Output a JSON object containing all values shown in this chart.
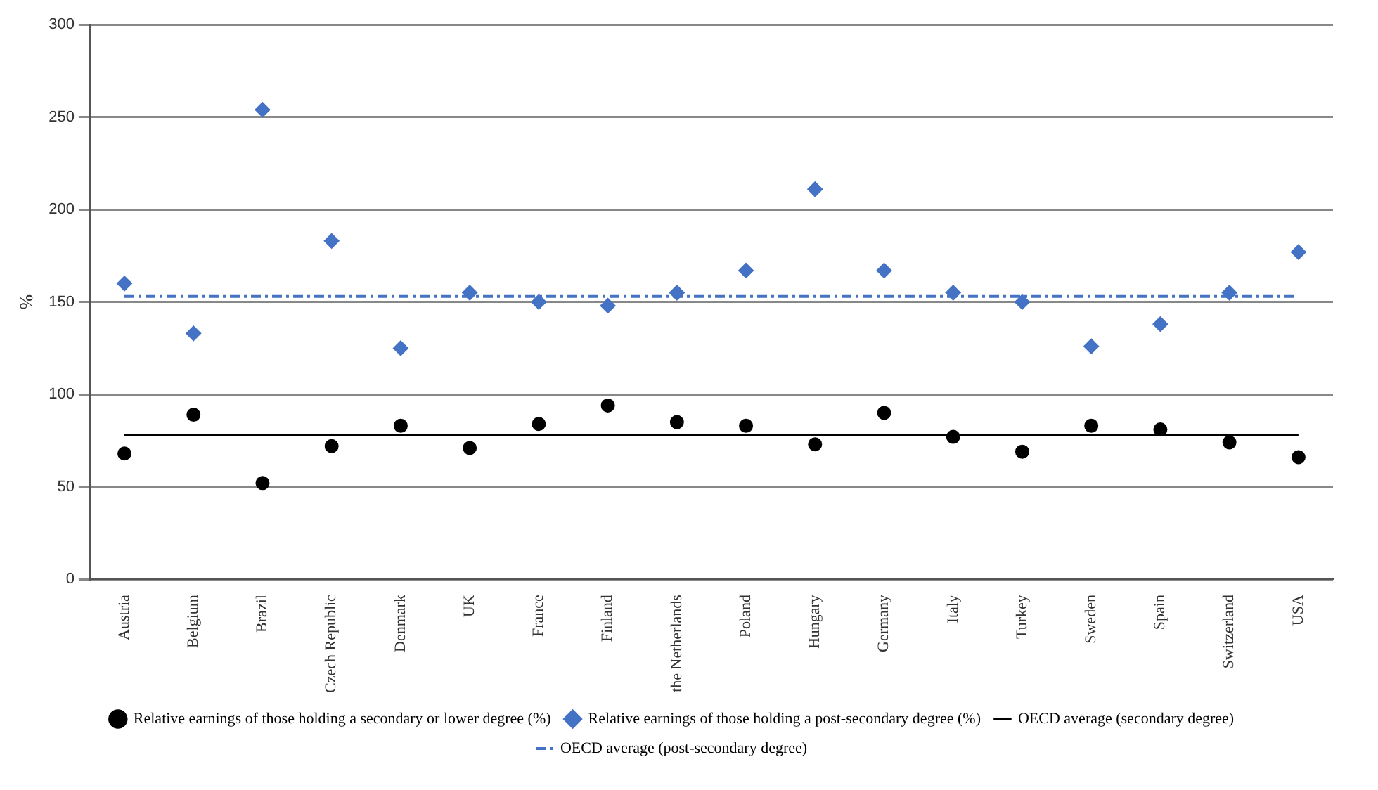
{
  "chart_data": {
    "type": "scatter",
    "ylabel": "%",
    "categories": [
      "Austria",
      "Belgium",
      "Brazil",
      "Czech Republic",
      "Denmark",
      "UK",
      "France",
      "Finland",
      "the Netherlands",
      "Poland",
      "Hungary",
      "Germany",
      "Italy",
      "Turkey",
      "Sweden",
      "Spain",
      "Switzerland",
      "USA"
    ],
    "series": [
      {
        "name": "Relative earnings of those holding a secondary or lower degree (%)",
        "marker": "circle",
        "color": "#000000",
        "values": [
          68,
          89,
          52,
          72,
          83,
          71,
          84,
          94,
          85,
          83,
          73,
          90,
          77,
          69,
          83,
          81,
          74,
          66
        ]
      },
      {
        "name": "Relative earnings of those holding a post-secondary degree (%)",
        "marker": "diamond",
        "color": "#4472c4",
        "values": [
          160,
          133,
          254,
          183,
          125,
          155,
          150,
          148,
          155,
          167,
          211,
          167,
          155,
          150,
          126,
          138,
          155,
          177
        ]
      },
      {
        "name": "OECD average (secondary degree)",
        "type": "line",
        "marker": "none",
        "line_style": "solid",
        "color": "#000000",
        "values": [
          78,
          78,
          78,
          78,
          78,
          78,
          78,
          78,
          78,
          78,
          78,
          78,
          78,
          78,
          78,
          78,
          78,
          78
        ]
      },
      {
        "name": "OECD average (post-secondary degree)",
        "type": "line",
        "marker": "none",
        "line_style": "dashed",
        "color": "#4472c4",
        "values": [
          153,
          153,
          153,
          153,
          153,
          153,
          153,
          153,
          153,
          153,
          153,
          153,
          153,
          153,
          153,
          153,
          153,
          153
        ]
      }
    ],
    "ylim": [
      0,
      300
    ],
    "yticks": [
      0,
      50,
      100,
      150,
      200,
      250,
      300
    ],
    "grid": "y",
    "legend": "bottom"
  }
}
